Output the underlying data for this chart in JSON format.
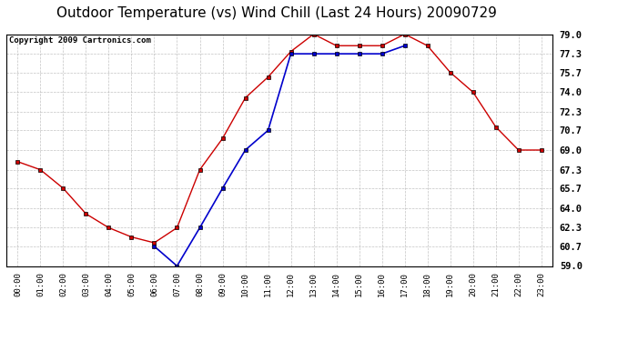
{
  "title": "Outdoor Temperature (vs) Wind Chill (Last 24 Hours) 20090729",
  "copyright_text": "Copyright 2009 Cartronics.com",
  "hours": [
    "00:00",
    "01:00",
    "02:00",
    "03:00",
    "04:00",
    "05:00",
    "06:00",
    "07:00",
    "08:00",
    "09:00",
    "10:00",
    "11:00",
    "12:00",
    "13:00",
    "14:00",
    "15:00",
    "16:00",
    "17:00",
    "18:00",
    "19:00",
    "20:00",
    "21:00",
    "22:00",
    "23:00"
  ],
  "temp": [
    68.0,
    67.3,
    65.7,
    63.5,
    62.3,
    61.5,
    61.0,
    62.3,
    67.3,
    70.0,
    73.5,
    75.3,
    77.5,
    79.0,
    78.0,
    78.0,
    78.0,
    79.0,
    78.0,
    75.7,
    74.0,
    71.0,
    69.0,
    69.0
  ],
  "wind_chill": [
    null,
    null,
    null,
    null,
    null,
    null,
    60.7,
    59.0,
    62.3,
    65.7,
    69.0,
    70.7,
    77.3,
    77.3,
    77.3,
    77.3,
    77.3,
    78.0,
    null,
    null,
    null,
    null,
    null,
    null
  ],
  "temp_color": "#cc0000",
  "wind_chill_color": "#0000cc",
  "bg_color": "#ffffff",
  "grid_color": "#aaaaaa",
  "ylim": [
    59.0,
    79.0
  ],
  "yticks": [
    59.0,
    60.7,
    62.3,
    64.0,
    65.7,
    67.3,
    69.0,
    70.7,
    72.3,
    74.0,
    75.7,
    77.3,
    79.0
  ],
  "title_fontsize": 11,
  "copyright_fontsize": 6.5
}
